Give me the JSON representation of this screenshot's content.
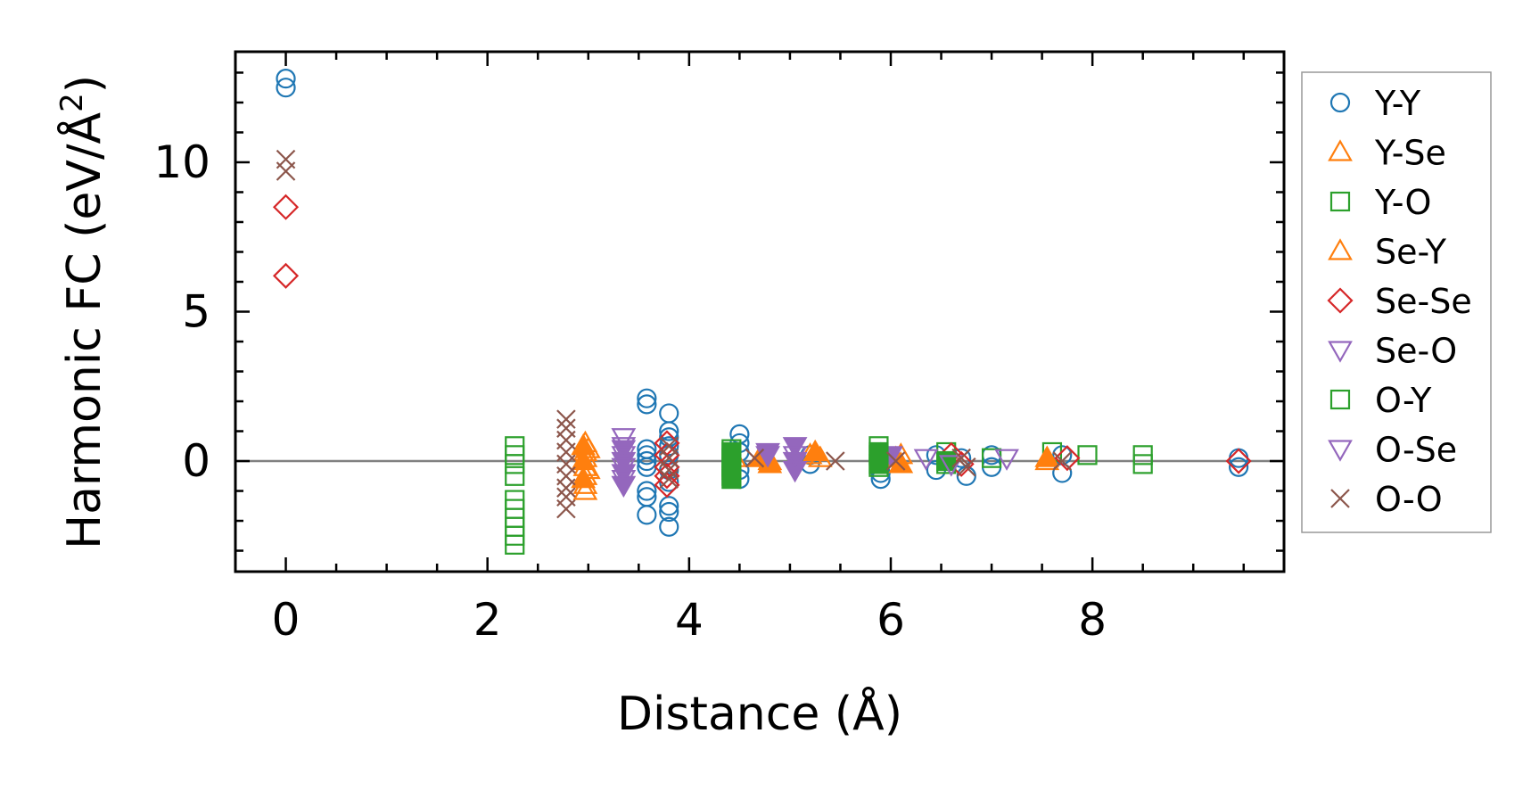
{
  "chart_data": {
    "type": "scatter",
    "title": "",
    "xlabel": "Distance (Å)",
    "ylabel_main": "Harmonic FC (eV/Å",
    "ylabel_sup": "2",
    "ylabel_close": ")",
    "xlim": [
      -0.5,
      9.9
    ],
    "ylim": [
      -3.7,
      13.7
    ],
    "xticks": [
      0,
      2,
      4,
      6,
      8
    ],
    "xtick_labels": [
      "0",
      "2",
      "4",
      "6",
      "8"
    ],
    "yticks": [
      0,
      5,
      10
    ],
    "ytick_labels": [
      "0",
      "5",
      "10"
    ],
    "zero_line": 0,
    "grid": false,
    "legend_position": "outside-right",
    "series": [
      {
        "name": "Y-Y",
        "marker": "circle",
        "color": "#1f77b4",
        "filled": false,
        "points": [
          [
            0,
            12.8
          ],
          [
            0,
            12.5
          ],
          [
            3.58,
            2.1
          ],
          [
            3.58,
            1.9
          ],
          [
            3.58,
            0.4
          ],
          [
            3.58,
            0.2
          ],
          [
            3.58,
            0.0
          ],
          [
            3.58,
            -0.2
          ],
          [
            3.58,
            -1.0
          ],
          [
            3.58,
            -1.2
          ],
          [
            3.58,
            -1.8
          ],
          [
            3.8,
            1.6
          ],
          [
            3.8,
            1.0
          ],
          [
            3.8,
            0.8
          ],
          [
            3.8,
            0.5
          ],
          [
            3.8,
            0.2
          ],
          [
            3.8,
            -0.3
          ],
          [
            3.8,
            -0.7
          ],
          [
            3.8,
            -1.5
          ],
          [
            3.8,
            -1.7
          ],
          [
            3.8,
            -2.2
          ],
          [
            4.5,
            0.9
          ],
          [
            4.5,
            0.6
          ],
          [
            4.5,
            0.3
          ],
          [
            4.5,
            -0.3
          ],
          [
            4.5,
            -0.6
          ],
          [
            5.2,
            0.2
          ],
          [
            5.2,
            -0.1
          ],
          [
            5.9,
            0.3
          ],
          [
            5.9,
            -0.4
          ],
          [
            5.9,
            -0.6
          ],
          [
            6.45,
            0.2
          ],
          [
            6.45,
            -0.3
          ],
          [
            6.7,
            0.1
          ],
          [
            6.75,
            -0.5
          ],
          [
            7.0,
            0.2
          ],
          [
            7.0,
            -0.2
          ],
          [
            7.7,
            0.2
          ],
          [
            7.7,
            -0.4
          ],
          [
            9.45,
            0.1
          ],
          [
            9.45,
            -0.2
          ]
        ]
      },
      {
        "name": "Y-Se",
        "marker": "triangle-up",
        "color": "#ff7f0e",
        "filled": false,
        "points": [
          [
            2.97,
            0.6
          ],
          [
            2.97,
            0.3
          ],
          [
            2.97,
            0.1
          ],
          [
            2.97,
            -0.2
          ],
          [
            2.97,
            -0.5
          ],
          [
            2.97,
            -0.8
          ],
          [
            2.97,
            -1.0
          ],
          [
            3.0,
            0.4
          ],
          [
            3.0,
            -0.3
          ],
          [
            4.45,
            0.1
          ],
          [
            4.8,
            0.0
          ],
          [
            5.2,
            0.2
          ],
          [
            5.3,
            0.1
          ],
          [
            6.1,
            0.2
          ],
          [
            7.55,
            0.0
          ]
        ]
      },
      {
        "name": "Y-O",
        "marker": "square",
        "color": "#2ca02c",
        "filled": false,
        "points": [
          [
            2.27,
            0.5
          ],
          [
            2.27,
            0.2
          ],
          [
            2.27,
            -0.1
          ],
          [
            2.27,
            -0.5
          ],
          [
            2.27,
            -1.3
          ],
          [
            2.27,
            -1.6
          ],
          [
            2.27,
            -1.9
          ],
          [
            2.27,
            -2.2
          ],
          [
            2.27,
            -2.5
          ],
          [
            2.27,
            -2.8
          ],
          [
            4.42,
            0.4
          ],
          [
            4.42,
            0.1
          ],
          [
            4.42,
            -0.2
          ],
          [
            4.42,
            -0.5
          ],
          [
            5.88,
            0.5
          ],
          [
            5.88,
            0.2
          ],
          [
            5.88,
            -0.2
          ],
          [
            6.55,
            0.3
          ],
          [
            6.55,
            -0.1
          ],
          [
            7.0,
            0.1
          ],
          [
            7.6,
            0.3
          ],
          [
            7.95,
            0.2
          ],
          [
            8.5,
            0.2
          ],
          [
            8.5,
            -0.1
          ]
        ]
      },
      {
        "name": "Se-Y",
        "marker": "triangle-up",
        "color": "#ff7f0e",
        "filled": true,
        "points": [
          [
            2.95,
            0.5
          ],
          [
            2.95,
            0.0
          ],
          [
            2.95,
            -0.6
          ],
          [
            4.7,
            0.1
          ],
          [
            4.8,
            -0.1
          ],
          [
            5.25,
            0.3
          ],
          [
            6.05,
            0.1
          ],
          [
            6.1,
            -0.1
          ],
          [
            7.55,
            0.1
          ]
        ]
      },
      {
        "name": "Se-Se",
        "marker": "diamond",
        "color": "#d62728",
        "filled": false,
        "points": [
          [
            0,
            8.5
          ],
          [
            0,
            6.2
          ],
          [
            3.78,
            0.6
          ],
          [
            3.78,
            0.2
          ],
          [
            3.78,
            -0.2
          ],
          [
            3.78,
            -0.5
          ],
          [
            3.78,
            -0.8
          ],
          [
            6.6,
            0.2
          ],
          [
            6.7,
            -0.1
          ],
          [
            7.75,
            0.1
          ],
          [
            9.45,
            0.0
          ]
        ]
      },
      {
        "name": "Se-O",
        "marker": "triangle-down",
        "color": "#9467bd",
        "filled": true,
        "points": [
          [
            3.35,
            0.4
          ],
          [
            3.35,
            0.0
          ],
          [
            3.35,
            -0.4
          ],
          [
            3.35,
            -0.8
          ],
          [
            4.78,
            0.3
          ],
          [
            5.05,
            0.5
          ],
          [
            5.05,
            0.0
          ],
          [
            5.05,
            -0.3
          ],
          [
            6.0,
            0.2
          ]
        ]
      },
      {
        "name": "O-Y",
        "marker": "square",
        "color": "#2ca02c",
        "filled": true,
        "points": [
          [
            4.42,
            0.3
          ],
          [
            4.42,
            -0.3
          ],
          [
            4.42,
            -0.6
          ],
          [
            5.88,
            0.3
          ],
          [
            5.88,
            -0.1
          ],
          [
            6.55,
            0.0
          ]
        ]
      },
      {
        "name": "O-Se",
        "marker": "triangle-down",
        "color": "#9467bd",
        "filled": false,
        "points": [
          [
            3.35,
            0.8
          ],
          [
            3.35,
            0.5
          ],
          [
            3.35,
            0.2
          ],
          [
            3.35,
            -0.2
          ],
          [
            3.35,
            -0.6
          ],
          [
            4.78,
            0.2
          ],
          [
            5.05,
            0.2
          ],
          [
            6.35,
            0.1
          ],
          [
            6.6,
            -0.1
          ],
          [
            7.15,
            0.1
          ]
        ]
      },
      {
        "name": "O-O",
        "marker": "x",
        "color": "#8c564b",
        "filled": false,
        "points": [
          [
            0,
            10.1
          ],
          [
            0,
            9.7
          ],
          [
            2.78,
            1.4
          ],
          [
            2.78,
            1.1
          ],
          [
            2.78,
            0.7
          ],
          [
            2.78,
            0.3
          ],
          [
            2.78,
            -0.1
          ],
          [
            2.78,
            -0.5
          ],
          [
            2.78,
            -0.9
          ],
          [
            2.78,
            -1.2
          ],
          [
            2.78,
            -1.6
          ],
          [
            3.8,
            0.5
          ],
          [
            3.8,
            0.1
          ],
          [
            3.8,
            -0.3
          ],
          [
            3.8,
            -0.6
          ],
          [
            4.65,
            0.1
          ],
          [
            5.45,
            0.0
          ],
          [
            6.05,
            0.0
          ],
          [
            6.7,
            0.1
          ],
          [
            6.75,
            -0.2
          ],
          [
            7.7,
            0.0
          ]
        ]
      }
    ]
  }
}
